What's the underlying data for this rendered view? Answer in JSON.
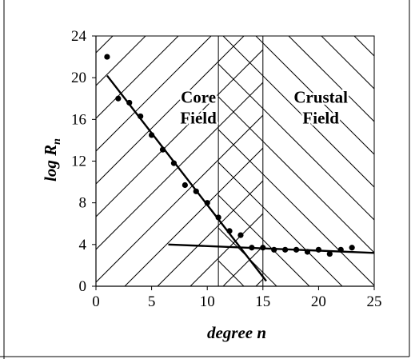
{
  "chart_data": {
    "type": "scatter",
    "title": "",
    "xlabel": "degree n",
    "ylabel_main": "log R",
    "ylabel_sub": "n",
    "xlim": [
      0,
      25
    ],
    "ylim": [
      0,
      24
    ],
    "x_ticks": [
      "0",
      "5",
      "10",
      "15",
      "20",
      "25"
    ],
    "y_ticks": [
      "0",
      "4",
      "8",
      "12",
      "16",
      "20",
      "24"
    ],
    "grid": false,
    "legend": "none",
    "series": [
      {
        "points": [
          [
            1,
            22.0
          ],
          [
            2,
            18.0
          ],
          [
            3,
            17.6
          ],
          [
            4,
            16.3
          ],
          [
            5,
            14.5
          ],
          [
            6,
            13.1
          ],
          [
            7,
            11.8
          ],
          [
            8,
            9.7
          ],
          [
            9,
            9.1
          ],
          [
            10,
            8.0
          ],
          [
            11,
            6.6
          ],
          [
            12,
            5.3
          ],
          [
            13,
            4.9
          ],
          [
            14,
            3.7
          ],
          [
            15,
            3.7
          ],
          [
            16,
            3.5
          ],
          [
            17,
            3.5
          ],
          [
            18,
            3.5
          ],
          [
            19,
            3.3
          ],
          [
            20,
            3.5
          ],
          [
            21,
            3.1
          ],
          [
            22,
            3.5
          ],
          [
            23,
            3.7
          ]
        ]
      }
    ],
    "fit_lines": [
      {
        "from": [
          1,
          20.2
        ],
        "to": [
          15.3,
          0.5
        ]
      },
      {
        "from": [
          6.5,
          4.0
        ],
        "to": [
          25,
          3.2
        ]
      }
    ],
    "regions": [
      {
        "label_lines": [
          "Core",
          "Field"
        ],
        "x_range": [
          0,
          15
        ],
        "hatch": "forward-diagonal",
        "label_at": [
          9.2,
          17.6
        ]
      },
      {
        "label_lines": [
          "Crustal",
          "Field"
        ],
        "x_range": [
          11,
          25
        ],
        "hatch": "back-diagonal",
        "label_at": [
          20.2,
          17.6
        ]
      }
    ],
    "overlap_range": [
      11,
      15
    ],
    "colors": {
      "marks": "#000000",
      "background": "#ffffff"
    }
  }
}
